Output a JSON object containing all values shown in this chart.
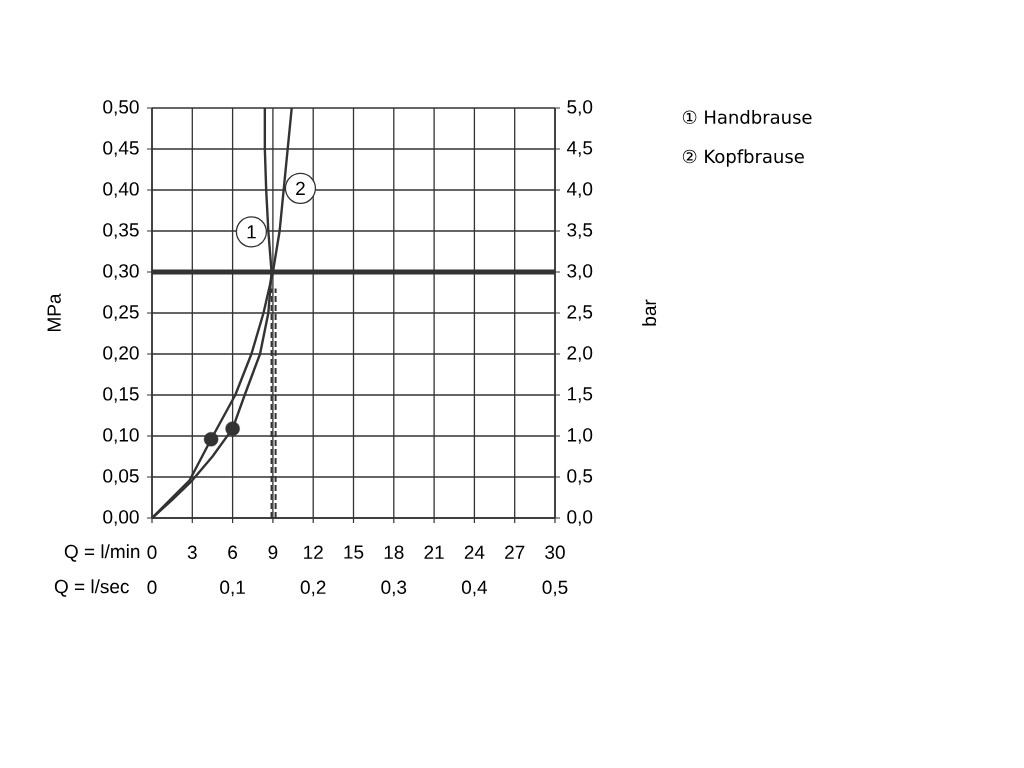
{
  "chart_data": {
    "type": "line",
    "xlabel": "Q = l/min",
    "ylabel": "MPa",
    "y2label": "bar",
    "x2label": "Q = l/sec",
    "xlim": [
      0,
      30
    ],
    "xticks": [
      0,
      3,
      6,
      9,
      12,
      15,
      18,
      21,
      24,
      27,
      30
    ],
    "ylim": [
      0,
      0.5
    ],
    "yticks": [
      {
        "value": 0,
        "label": "0,00"
      },
      {
        "value": 0.05,
        "label": "0,05"
      },
      {
        "value": 0.1,
        "label": "0,10"
      },
      {
        "value": 0.15,
        "label": "0,15"
      },
      {
        "value": 0.2,
        "label": "0,20"
      },
      {
        "value": 0.25,
        "label": "0,25"
      },
      {
        "value": 0.3,
        "label": "0,30"
      },
      {
        "value": 0.35,
        "label": "0,35"
      },
      {
        "value": 0.4,
        "label": "0,40"
      },
      {
        "value": 0.45,
        "label": "0,45"
      },
      {
        "value": 0.5,
        "label": "0,50"
      }
    ],
    "y2lim": [
      0,
      5
    ],
    "y2ticks": [
      {
        "value": 0,
        "label": "0,0"
      },
      {
        "value": 0.5,
        "label": "0,5"
      },
      {
        "value": 1,
        "label": "1,0"
      },
      {
        "value": 1.5,
        "label": "1,5"
      },
      {
        "value": 2,
        "label": "2,0"
      },
      {
        "value": 2.5,
        "label": "2,5"
      },
      {
        "value": 3,
        "label": "3,0"
      },
      {
        "value": 3.5,
        "label": "3,5"
      },
      {
        "value": 4,
        "label": "4,0"
      },
      {
        "value": 4.5,
        "label": "4,5"
      },
      {
        "value": 5,
        "label": "5,0"
      }
    ],
    "x2lim": [
      0,
      0.5
    ],
    "x2ticks": [
      0,
      {
        "value": 0.1,
        "label": "0,1"
      },
      {
        "value": 0.2,
        "label": "0,2"
      },
      {
        "value": 0.3,
        "label": "0,3"
      },
      {
        "value": 0.4,
        "label": "0,4"
      },
      {
        "value": 0.5,
        "label": "0,5"
      }
    ],
    "grid": true,
    "legend": "right",
    "series": [
      {
        "name": "① Handbrause",
        "color": "#333333",
        "x": [
          0,
          1.5,
          3.0,
          4.5,
          6.0,
          6.9,
          8.04,
          8.66,
          8.9,
          8.66,
          8.5,
          8.4,
          8.4
        ],
        "values": [
          0,
          0.022,
          0.046,
          0.075,
          0.109,
          0.15,
          0.2,
          0.25,
          0.3,
          0.35,
          0.4,
          0.45,
          0.5
        ]
      },
      {
        "name": "② Kopfbrause",
        "color": "#333333",
        "x": [
          0,
          1.4,
          2.8,
          4.4,
          6.2,
          7.4,
          8.3,
          9.0,
          9.5,
          9.8,
          10.1,
          10.4
        ],
        "values": [
          0,
          0.023,
          0.046,
          0.096,
          0.15,
          0.2,
          0.25,
          0.3,
          0.35,
          0.4,
          0.45,
          0.5
        ]
      },
      {
        "type": "scatter",
        "color": "#333333",
        "x": [
          4.4,
          6.0
        ],
        "values": [
          0.096,
          0.109
        ]
      },
      {
        "type": "line",
        "line_style": "dashed",
        "color": "#333333",
        "x": [
          8.9,
          8.9
        ],
        "values": [
          0,
          0.28
        ]
      },
      {
        "type": "line",
        "line_style": "dashed",
        "color": "#333333",
        "x": [
          9.2,
          9.2
        ],
        "values": [
          0,
          0.28
        ]
      }
    ],
    "ref_lines": [
      {
        "axis": "y",
        "value": 0.3,
        "color": "#333333"
      }
    ],
    "annotations": [
      {
        "text": "1",
        "x": 7.4,
        "y": 0.349
      },
      {
        "text": "2",
        "x": 11.05,
        "y": 0.402
      }
    ]
  }
}
